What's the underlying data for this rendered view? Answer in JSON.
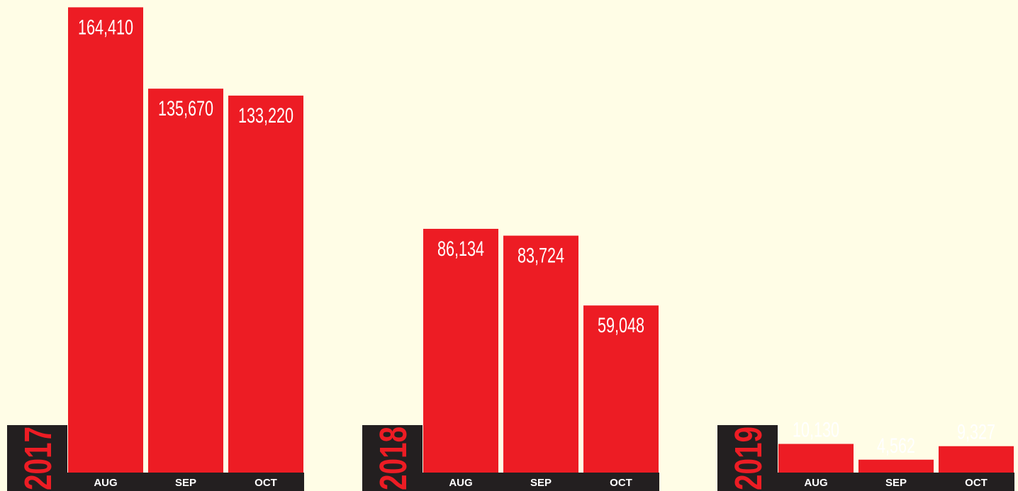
{
  "chart_data": [
    {
      "type": "bar",
      "title": "2017",
      "categories": [
        "AUG",
        "SEP",
        "OCT"
      ],
      "values": [
        164410,
        135670,
        133220
      ],
      "value_labels": [
        "164,410",
        "135,670",
        "133,220"
      ],
      "color": "#ed1c24",
      "ylim": [
        0,
        167000
      ]
    },
    {
      "type": "bar",
      "title": "2018",
      "categories": [
        "AUG",
        "SEP",
        "OCT"
      ],
      "values": [
        86134,
        83724,
        59048
      ],
      "value_labels": [
        "86,134",
        "83,724",
        "59,048"
      ],
      "color": "#ed1c24",
      "ylim": [
        0,
        167000
      ]
    },
    {
      "type": "bar",
      "title": "2019",
      "categories": [
        "AUG",
        "SEP",
        "OCT"
      ],
      "values": [
        10130,
        4562,
        9327
      ],
      "value_labels": [
        "10,130",
        "4,562",
        "9,327"
      ],
      "color": "#ed1c24",
      "ylim": [
        0,
        167000
      ]
    }
  ]
}
